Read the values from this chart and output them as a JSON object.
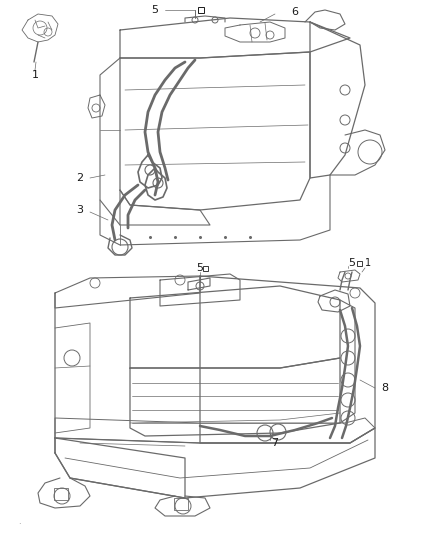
{
  "background_color": "#ffffff",
  "line_color": "#6a6a6a",
  "label_color": "#1a1a1a",
  "fig_width": 4.38,
  "fig_height": 5.33,
  "dpi": 100,
  "footnote": "·"
}
